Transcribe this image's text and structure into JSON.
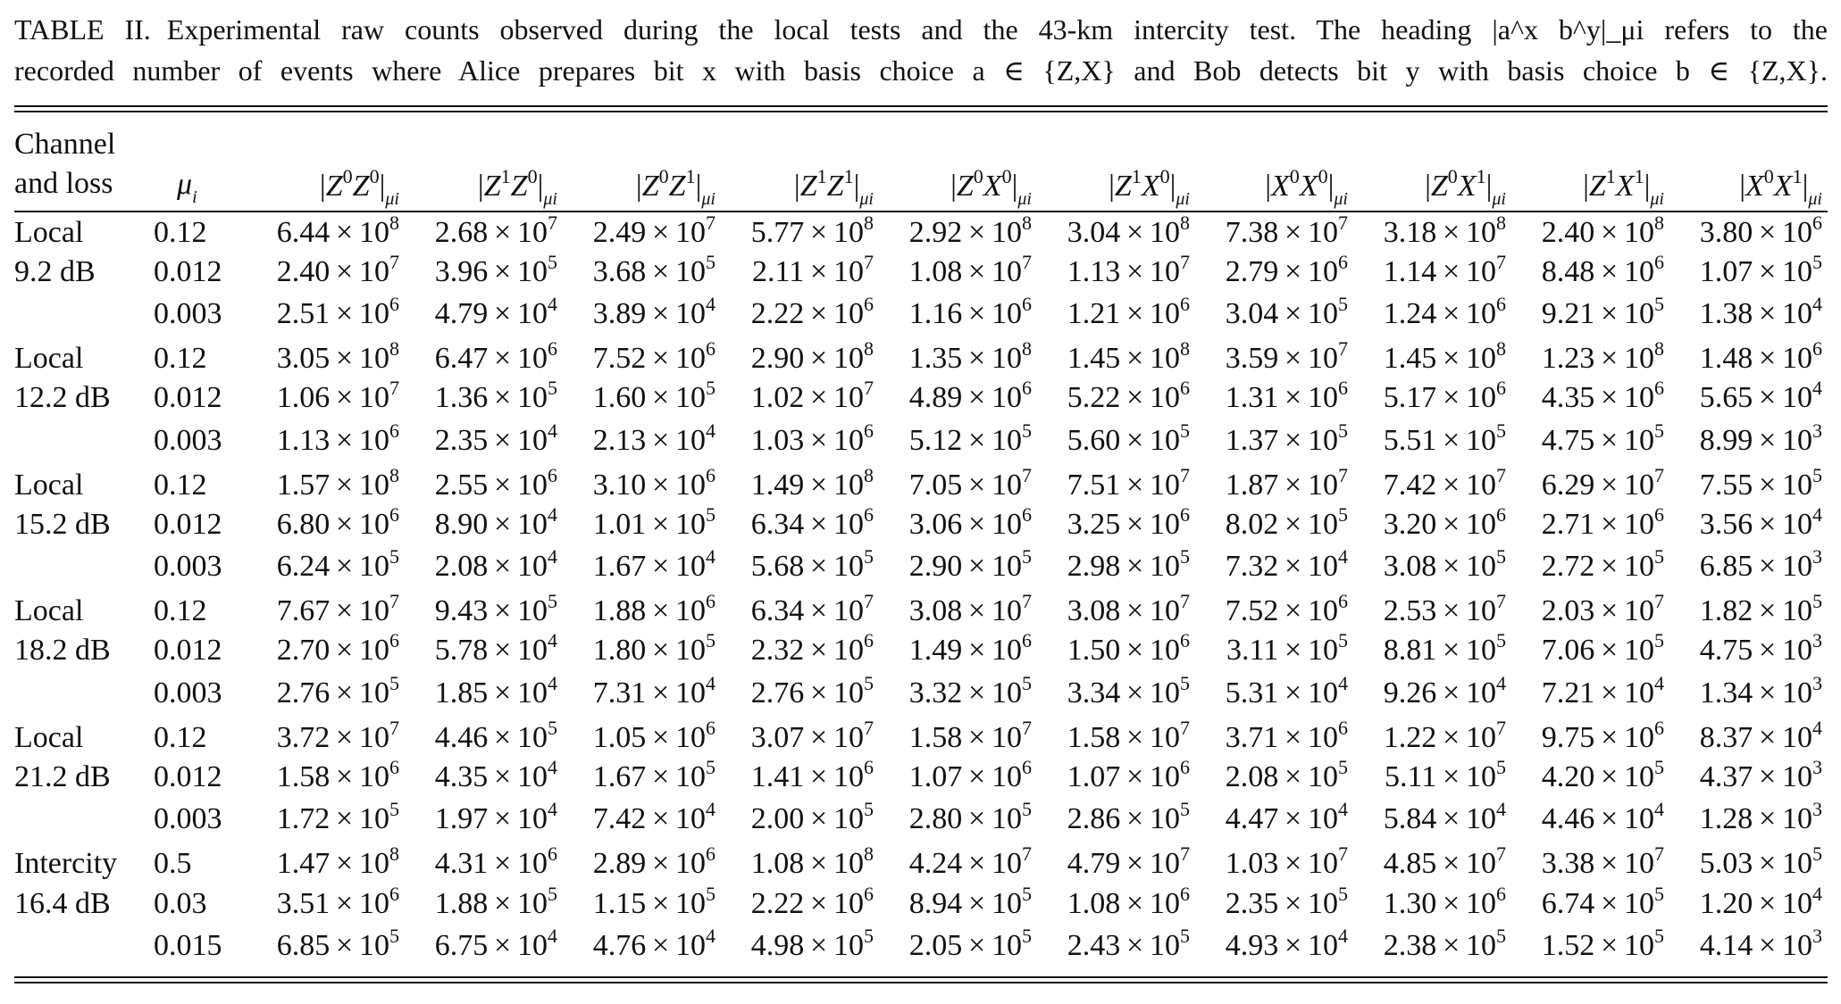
{
  "caption": {
    "label": "TABLE II.",
    "line1": "Experimental raw counts observed during the local tests and the 43-km intercity test. The heading |a^x b^y|_μi refers to the",
    "line2": "recorded number of events where Alice prepares bit x with basis choice a ∈ {Z,X} and Bob detects bit y with basis choice b ∈ {Z,X}."
  },
  "columns": {
    "channel_line1": "Channel",
    "channel_line2": "and loss",
    "mu": "μ",
    "mu_sub": "i",
    "headers": [
      {
        "a": "Z",
        "x": "0",
        "b": "Z",
        "y": "0"
      },
      {
        "a": "Z",
        "x": "1",
        "b": "Z",
        "y": "0"
      },
      {
        "a": "Z",
        "x": "0",
        "b": "Z",
        "y": "1"
      },
      {
        "a": "Z",
        "x": "1",
        "b": "Z",
        "y": "1"
      },
      {
        "a": "Z",
        "x": "0",
        "b": "X",
        "y": "0"
      },
      {
        "a": "Z",
        "x": "1",
        "b": "X",
        "y": "0"
      },
      {
        "a": "X",
        "x": "0",
        "b": "X",
        "y": "0"
      },
      {
        "a": "Z",
        "x": "0",
        "b": "X",
        "y": "1"
      },
      {
        "a": "Z",
        "x": "1",
        "b": "X",
        "y": "1"
      },
      {
        "a": "X",
        "x": "0",
        "b": "X",
        "y": "1"
      }
    ]
  },
  "rows": [
    {
      "label": "Local",
      "mu": "0.12",
      "values": [
        "6.44|8",
        "2.68|7",
        "2.49|7",
        "5.77|8",
        "2.92|8",
        "3.04|8",
        "7.38|7",
        "3.18|8",
        "2.40|8",
        "3.80|6"
      ]
    },
    {
      "label": "9.2 dB",
      "mu": "0.012",
      "values": [
        "2.40|7",
        "3.96|5",
        "3.68|5",
        "2.11|7",
        "1.08|7",
        "1.13|7",
        "2.79|6",
        "1.14|7",
        "8.48|6",
        "1.07|5"
      ]
    },
    {
      "label": "",
      "mu": "0.003",
      "values": [
        "2.51|6",
        "4.79|4",
        "3.89|4",
        "2.22|6",
        "1.16|6",
        "1.21|6",
        "3.04|5",
        "1.24|6",
        "9.21|5",
        "1.38|4"
      ]
    },
    {
      "label": "Local",
      "mu": "0.12",
      "values": [
        "3.05|8",
        "6.47|6",
        "7.52|6",
        "2.90|8",
        "1.35|8",
        "1.45|8",
        "3.59|7",
        "1.45|8",
        "1.23|8",
        "1.48|6"
      ]
    },
    {
      "label": "12.2 dB",
      "mu": "0.012",
      "values": [
        "1.06|7",
        "1.36|5",
        "1.60|5",
        "1.02|7",
        "4.89|6",
        "5.22|6",
        "1.31|6",
        "5.17|6",
        "4.35|6",
        "5.65|4"
      ]
    },
    {
      "label": "",
      "mu": "0.003",
      "values": [
        "1.13|6",
        "2.35|4",
        "2.13|4",
        "1.03|6",
        "5.12|5",
        "5.60|5",
        "1.37|5",
        "5.51|5",
        "4.75|5",
        "8.99|3"
      ]
    },
    {
      "label": "Local",
      "mu": "0.12",
      "values": [
        "1.57|8",
        "2.55|6",
        "3.10|6",
        "1.49|8",
        "7.05|7",
        "7.51|7",
        "1.87|7",
        "7.42|7",
        "6.29|7",
        "7.55|5"
      ]
    },
    {
      "label": "15.2 dB",
      "mu": "0.012",
      "values": [
        "6.80|6",
        "8.90|4",
        "1.01|5",
        "6.34|6",
        "3.06|6",
        "3.25|6",
        "8.02|5",
        "3.20|6",
        "2.71|6",
        "3.56|4"
      ]
    },
    {
      "label": "",
      "mu": "0.003",
      "values": [
        "6.24|5",
        "2.08|4",
        "1.67|4",
        "5.68|5",
        "2.90|5",
        "2.98|5",
        "7.32|4",
        "3.08|5",
        "2.72|5",
        "6.85|3"
      ]
    },
    {
      "label": "Local",
      "mu": "0.12",
      "values": [
        "7.67|7",
        "9.43|5",
        "1.88|6",
        "6.34|7",
        "3.08|7",
        "3.08|7",
        "7.52|6",
        "2.53|7",
        "2.03|7",
        "1.82|5"
      ]
    },
    {
      "label": "18.2 dB",
      "mu": "0.012",
      "values": [
        "2.70|6",
        "5.78|4",
        "1.80|5",
        "2.32|6",
        "1.49|6",
        "1.50|6",
        "3.11|5",
        "8.81|5",
        "7.06|5",
        "4.75|3"
      ]
    },
    {
      "label": "",
      "mu": "0.003",
      "values": [
        "2.76|5",
        "1.85|4",
        "7.31|4",
        "2.76|5",
        "3.32|5",
        "3.34|5",
        "5.31|4",
        "9.26|4",
        "7.21|4",
        "1.34|3"
      ]
    },
    {
      "label": "Local",
      "mu": "0.12",
      "values": [
        "3.72|7",
        "4.46|5",
        "1.05|6",
        "3.07|7",
        "1.58|7",
        "1.58|7",
        "3.71|6",
        "1.22|7",
        "9.75|6",
        "8.37|4"
      ]
    },
    {
      "label": "21.2 dB",
      "mu": "0.012",
      "values": [
        "1.58|6",
        "4.35|4",
        "1.67|5",
        "1.41|6",
        "1.07|6",
        "1.07|6",
        "2.08|5",
        "5.11|5",
        "4.20|5",
        "4.37|3"
      ]
    },
    {
      "label": "",
      "mu": "0.003",
      "values": [
        "1.72|5",
        "1.97|4",
        "7.42|4",
        "2.00|5",
        "2.80|5",
        "2.86|5",
        "4.47|4",
        "5.84|4",
        "4.46|4",
        "1.28|3"
      ]
    },
    {
      "label": "Intercity",
      "mu": "0.5",
      "values": [
        "1.47|8",
        "4.31|6",
        "2.89|6",
        "1.08|8",
        "4.24|7",
        "4.79|7",
        "1.03|7",
        "4.85|7",
        "3.38|7",
        "5.03|5"
      ]
    },
    {
      "label": "16.4 dB",
      "mu": "0.03",
      "values": [
        "3.51|6",
        "1.88|5",
        "1.15|5",
        "2.22|6",
        "8.94|5",
        "1.08|6",
        "2.35|5",
        "1.30|6",
        "6.74|5",
        "1.20|4"
      ]
    },
    {
      "label": "",
      "mu": "0.015",
      "values": [
        "6.85|5",
        "6.75|4",
        "4.76|4",
        "4.98|5",
        "2.05|5",
        "2.43|5",
        "4.93|4",
        "2.38|5",
        "1.52|5",
        "4.14|3"
      ]
    }
  ]
}
